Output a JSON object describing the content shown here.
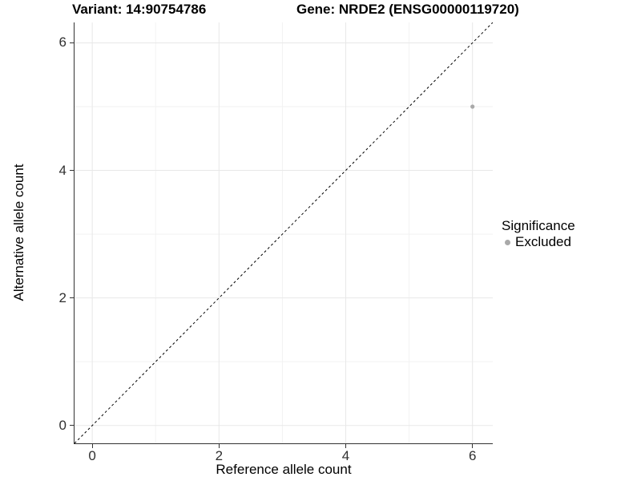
{
  "figure": {
    "title_left": "Variant: 14:90754786",
    "title_right": "Gene: NRDE2 (ENSG00000119720)"
  },
  "chart_data": {
    "type": "scatter",
    "xlabel": "Reference allele count",
    "ylabel": "Alternative allele count",
    "xlim": [
      -0.28,
      6.32
    ],
    "ylim": [
      -0.28,
      6.32
    ],
    "xticks": [
      0,
      2,
      4,
      6
    ],
    "yticks": [
      0,
      2,
      4,
      6
    ],
    "xminor": [
      1,
      3,
      5
    ],
    "yminor": [
      1,
      3,
      5
    ],
    "grid": true,
    "series": [
      {
        "name": "Excluded",
        "color": "#a9a9a9",
        "points": [
          {
            "x": 6,
            "y": 5
          }
        ]
      }
    ],
    "reference_line": {
      "slope": 1,
      "intercept": 0,
      "style": "dashed",
      "color": "#000000"
    },
    "legend": {
      "title": "Significance",
      "position": "right",
      "entries": [
        {
          "label": "Excluded",
          "color": "#a9a9a9"
        }
      ]
    }
  },
  "colors": {
    "background": "#ffffff",
    "grid_major": "#e8e8e8",
    "grid_minor": "#f2f2f2",
    "axis_line": "#333333",
    "tick_label": "#303030",
    "title_text": "#000000"
  }
}
